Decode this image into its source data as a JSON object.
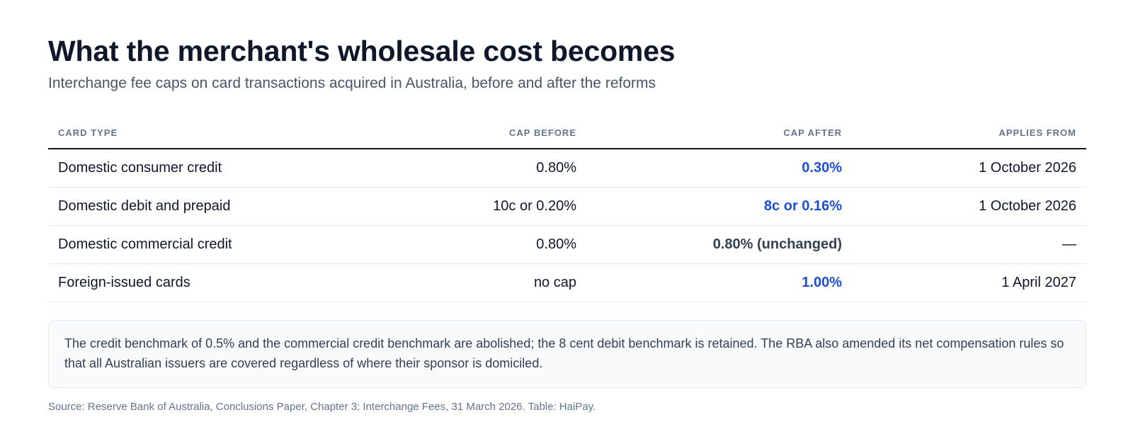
{
  "title": "What the merchant's wholesale cost becomes",
  "subtitle": "Interchange fee caps on card transactions acquired in Australia, before and after the reforms",
  "table": {
    "headers": {
      "card_type": "CARD TYPE",
      "cap_before": "CAP BEFORE",
      "cap_after": "CAP AFTER",
      "applies_from": "APPLIES FROM"
    },
    "rows": [
      {
        "card_type": "Domestic consumer credit",
        "cap_before": "0.80%",
        "cap_after": "0.30%",
        "applies_from": "1 October 2026"
      },
      {
        "card_type": "Domestic debit and prepaid",
        "cap_before": "10c or 0.20%",
        "cap_after": "8c or 0.16%",
        "applies_from": "1 October 2026"
      },
      {
        "card_type": "Domestic commercial credit",
        "cap_before": "0.80%",
        "cap_after": "0.80% (unchanged)",
        "applies_from": "—"
      },
      {
        "card_type": "Foreign-issued cards",
        "cap_before": "no cap",
        "cap_after": "1.00%",
        "applies_from": "1 April 2027"
      }
    ]
  },
  "note": "The credit benchmark of 0.5% and the commercial credit benchmark are abolished; the 8 cent debit benchmark is retained. The RBA also amended its net compensation rules so that all Australian issuers are covered regardless of where their sponsor is domiciled.",
  "source": "Source: Reserve Bank of Australia, Conclusions Paper, Chapter 3: Interchange Fees, 31 March 2026. Table: HaiPay.",
  "colors": {
    "changed_value": "#1d4ed8",
    "unchanged_value": "#334155",
    "heading": "#0f172a",
    "muted": "#64748b"
  }
}
